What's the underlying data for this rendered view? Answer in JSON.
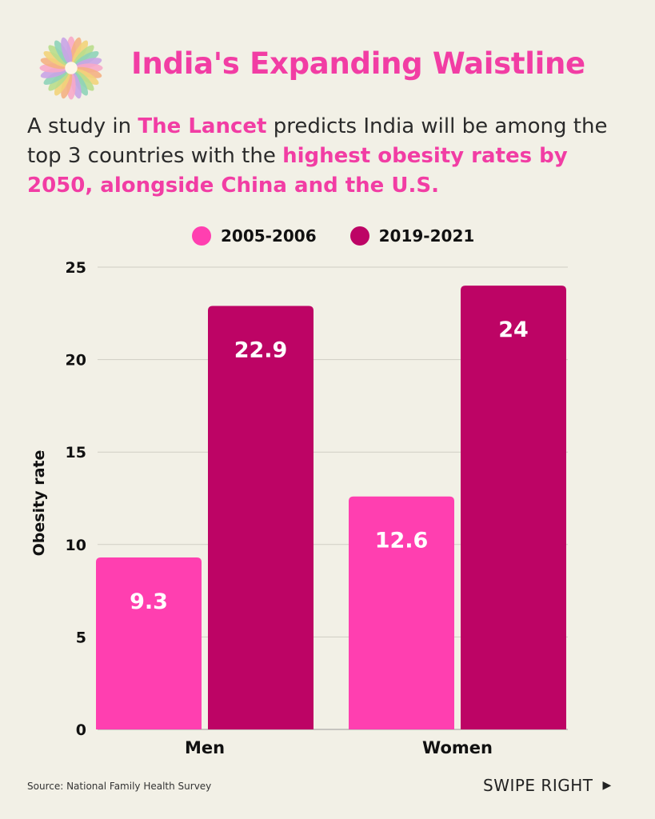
{
  "header": {
    "title": "India's Expanding Waistline"
  },
  "subtitle": {
    "part1": "A study in ",
    "highlight1": "The Lancet",
    "part2": " predicts India will be among the top 3 countries with the ",
    "highlight2": "highest obesity rates by 2050, alongside China and the U.S."
  },
  "colors": {
    "accent": "#f23da4",
    "series_2005": "#ff3fb0",
    "series_2019": "#bd0465",
    "background": "#f2f0e6"
  },
  "chart_data": {
    "type": "bar",
    "categories": [
      "Men",
      "Women"
    ],
    "series": [
      {
        "name": "2005-2006",
        "values": [
          9.3,
          12.6
        ]
      },
      {
        "name": "2019-2021",
        "values": [
          22.9,
          24
        ]
      }
    ],
    "ylabel": "Obesity rate",
    "xlabel": "",
    "ylim": [
      0,
      25
    ],
    "yticks": [
      0,
      5,
      10,
      15,
      20,
      25
    ],
    "grid": true,
    "legend_position": "top",
    "data_labels": true
  },
  "footer": {
    "source": "Source: National Family Health Survey",
    "swipe": "SWIPE RIGHT"
  }
}
